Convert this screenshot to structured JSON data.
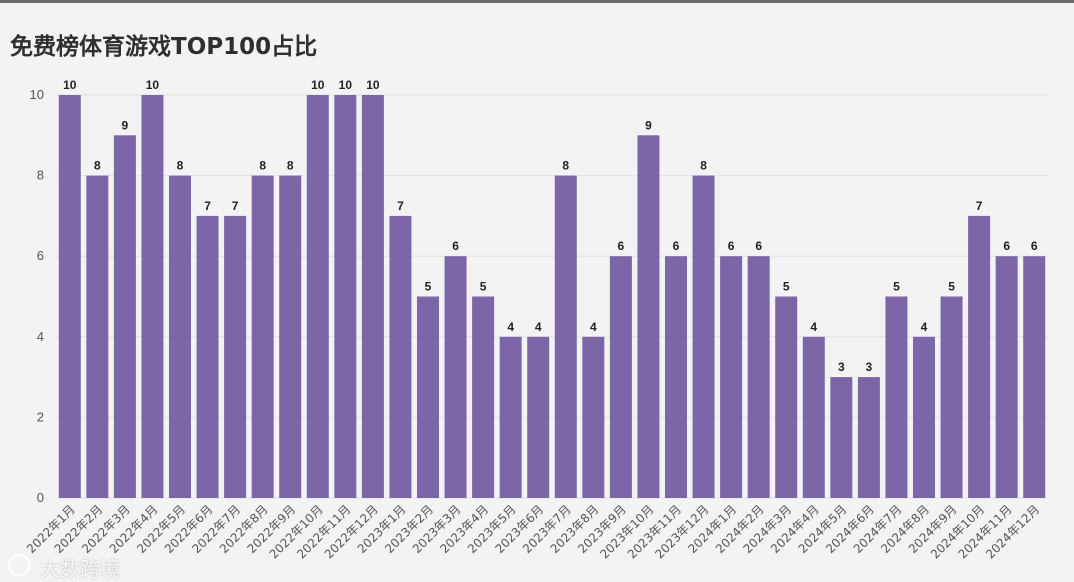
{
  "chart_data": {
    "type": "bar",
    "title": "免费榜体育游戏TOP100占比",
    "categories": [
      "2022年1月",
      "2022年2月",
      "2022年3月",
      "2022年4月",
      "2022年5月",
      "2022年6月",
      "2022年7月",
      "2022年8月",
      "2022年9月",
      "2022年10月",
      "2022年11月",
      "2022年12月",
      "2023年1月",
      "2023年2月",
      "2023年3月",
      "2023年4月",
      "2023年5月",
      "2023年6月",
      "2023年7月",
      "2023年8月",
      "2023年9月",
      "2023年10月",
      "2023年11月",
      "2023年12月",
      "2024年1月",
      "2024年2月",
      "2024年3月",
      "2024年4月",
      "2024年5月",
      "2024年6月",
      "2024年7月",
      "2024年8月",
      "2024年9月",
      "2024年10月",
      "2024年11月",
      "2024年12月"
    ],
    "values": [
      10,
      8,
      9,
      10,
      8,
      7,
      7,
      8,
      8,
      10,
      10,
      10,
      7,
      5,
      6,
      5,
      4,
      4,
      8,
      4,
      6,
      9,
      6,
      8,
      6,
      6,
      5,
      4,
      3,
      3,
      5,
      4,
      5,
      7,
      6,
      6
    ],
    "ylim": [
      0,
      10
    ],
    "yticks": [
      0,
      2,
      4,
      6,
      8,
      10
    ],
    "grid": true,
    "legend": "none",
    "bar_color": "#7b66a8"
  },
  "watermark": "大数跨境"
}
